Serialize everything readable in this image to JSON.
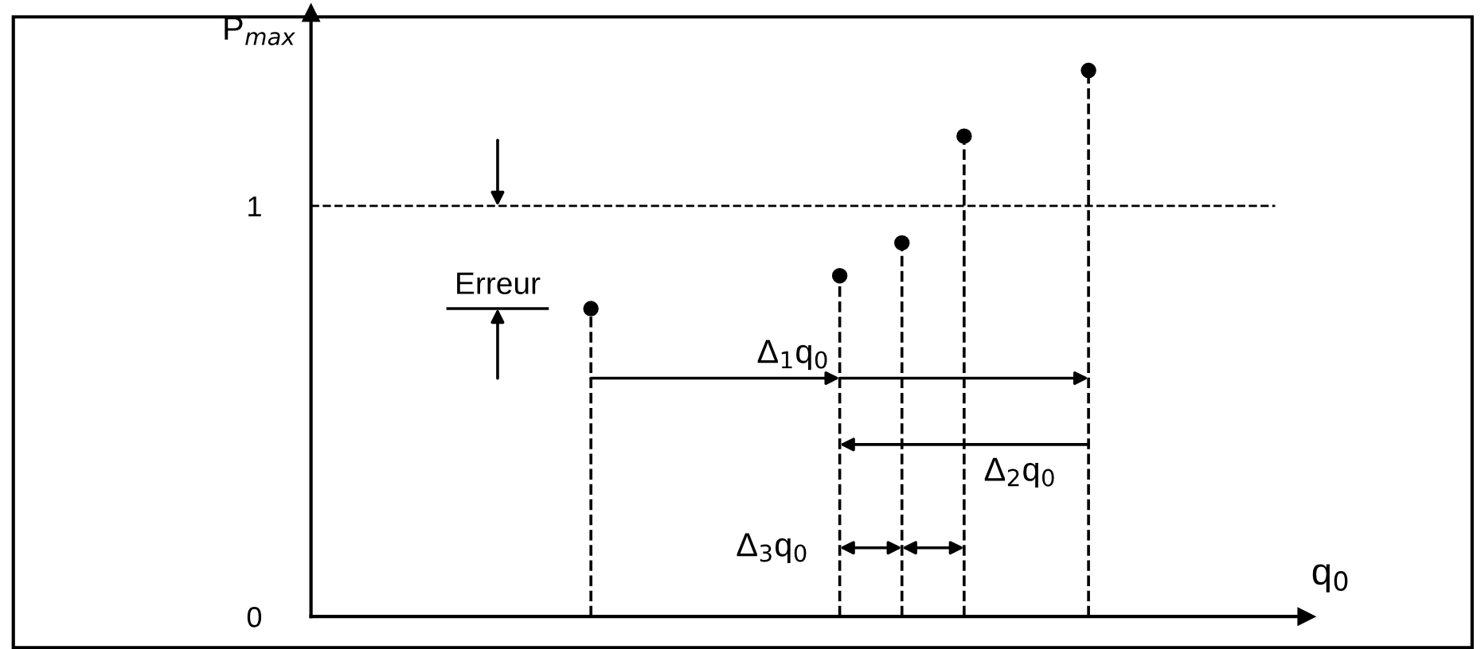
{
  "chart_data": {
    "type": "lollipop",
    "categories": [
      null,
      null,
      null,
      null,
      null,
      null,
      null,
      null,
      null,
      null,
      null,
      null,
      null,
      null,
      null,
      null
    ],
    "series": [
      {
        "color": "#000000",
        "values": [
          null,
          null,
          null,
          null,
          0.75,
          null,
          null,
          null,
          0.83,
          0.91,
          1.17,
          null,
          1.33,
          null,
          null,
          null
        ]
      }
    ],
    "ylim": [
      0,
      1.47
    ],
    "yticks": [
      0,
      1
    ],
    "tick_labels": "y",
    "ylabel": "P$_{max}$",
    "xlabel": "q$_{0}$",
    "marker": "circle",
    "line_style": "dashed",
    "grid": false,
    "ref_lines": [
      {
        "axis": "y",
        "value": 1,
        "color": "#000000",
        "line_style": "dashed"
      }
    ],
    "annotations": [
      "Erreur",
      "Δ$_{1}$q$_{0}$",
      "Δ$_{2}$q$_{0}$",
      "Δ$_{3}$q$_{0}$"
    ]
  }
}
